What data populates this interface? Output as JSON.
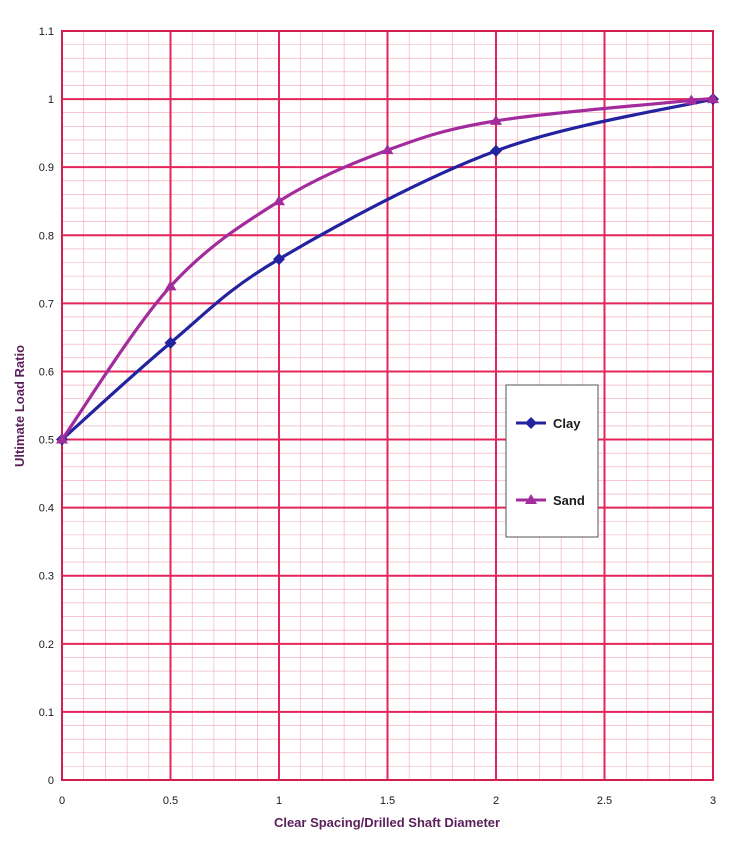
{
  "chart_data": {
    "type": "line",
    "title": "",
    "xlabel": "Clear Spacing/Drilled Shaft Diameter",
    "ylabel": "Ultimate Load Ratio",
    "xlim": [
      0,
      3
    ],
    "ylim": [
      0,
      1.1
    ],
    "x_ticks": [
      0,
      0.5,
      1,
      1.5,
      2,
      2.5,
      3
    ],
    "x_tick_labels": [
      "0",
      "0.5",
      "1",
      "1.5",
      "2",
      "2.5",
      "3"
    ],
    "y_ticks": [
      0,
      0.1,
      0.2,
      0.3,
      0.4,
      0.5,
      0.6,
      0.7,
      0.8,
      0.9,
      1,
      1.1
    ],
    "y_tick_labels": [
      "0",
      "0.1",
      "0.2",
      "0.3",
      "0.4",
      "0.5",
      "0.6",
      "0.7",
      "0.8",
      "0.9",
      "1",
      "1.1"
    ],
    "grid": true,
    "minor_grid": true,
    "legend_position": "right-middle",
    "grid_color_major": "#e4245a",
    "grid_color_minor": "#f3a7bd",
    "series": [
      {
        "name": "Clay",
        "marker": "diamond",
        "color": "#2323a0",
        "x": [
          0,
          0.5,
          1,
          2,
          3
        ],
        "y": [
          0.5,
          0.642,
          0.765,
          0.924,
          1.0
        ]
      },
      {
        "name": "Sand",
        "marker": "triangle",
        "color": "#a32c9c",
        "x": [
          0,
          0.5,
          1,
          1.5,
          2,
          2.9,
          3
        ],
        "y": [
          0.5,
          0.725,
          0.85,
          0.925,
          0.968,
          0.998,
          1.0
        ]
      }
    ]
  }
}
